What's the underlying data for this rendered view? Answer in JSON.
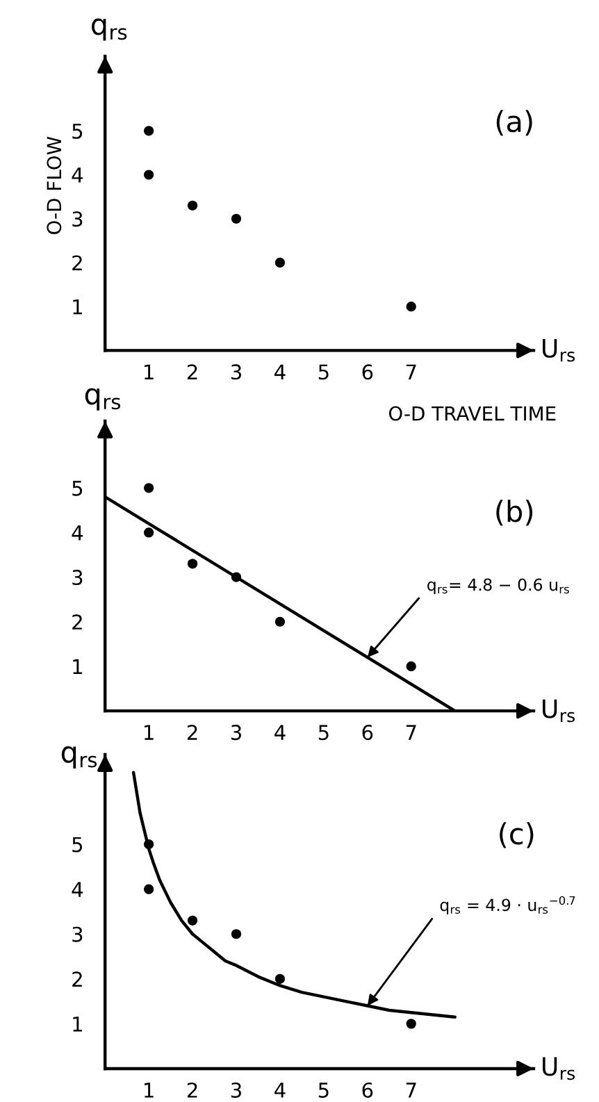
{
  "chart_data": [
    {
      "type": "scatter",
      "title": "(a)",
      "xlabel": "U$_{rs}$",
      "ylabel": "q$_{rs}$",
      "xlim": [
        0,
        9.8
      ],
      "ylim": [
        0,
        6.7
      ],
      "xticks": [
        1,
        2,
        3,
        4,
        5,
        6,
        7
      ],
      "yticks": [
        1,
        2,
        3,
        4,
        5
      ],
      "annotations": [
        "O-D FLOW",
        "O-D TRAVEL TIME"
      ],
      "series": [
        {
          "color": "#000000",
          "marker": "circle",
          "x": [
            1,
            1,
            2,
            3,
            4,
            7
          ],
          "values": [
            5,
            4,
            3.3,
            3,
            2,
            1
          ]
        }
      ]
    },
    {
      "type": "scatter",
      "title": "(b)",
      "xlabel": "U$_{rs}$",
      "ylabel": "q$_{rs}$",
      "xlim": [
        0,
        9.8
      ],
      "ylim": [
        0,
        6.5
      ],
      "xticks": [
        1,
        2,
        3,
        4,
        5,
        6,
        7
      ],
      "yticks": [
        1,
        2,
        3,
        4,
        5
      ],
      "annotations": [
        {
          "text": "q$_{rs}$= 4.8 − 0.6 u$_{rs}$",
          "x": 6,
          "y": 1.2
        }
      ],
      "series": [
        {
          "color": "#000000",
          "marker": "circle",
          "x": [
            1,
            1,
            2,
            3,
            4,
            7
          ],
          "values": [
            5,
            4,
            3.3,
            3,
            2,
            1
          ]
        },
        {
          "type": "line",
          "color": "#000000",
          "marker": "none",
          "line_style": "solid",
          "x": [
            0,
            8
          ],
          "values": [
            4.8,
            0
          ]
        }
      ]
    },
    {
      "type": "scatter",
      "title": "(c)",
      "xlabel": "U$_{rs}$",
      "ylabel": "q$_{rs}$",
      "xlim": [
        0,
        9.8
      ],
      "ylim": [
        0,
        7
      ],
      "xticks": [
        1,
        2,
        3,
        4,
        5,
        6,
        7
      ],
      "yticks": [
        1,
        2,
        3,
        4,
        5
      ],
      "annotations": [
        {
          "text": "q$_{rs}$ = 4.9 · u$_{rs}$$^{−0.7}$",
          "x": 6,
          "y": 1.4
        }
      ],
      "series": [
        {
          "color": "#000000",
          "marker": "circle",
          "x": [
            1,
            1,
            2,
            3,
            4,
            7
          ],
          "values": [
            5,
            4,
            3.3,
            3,
            2,
            1
          ]
        },
        {
          "type": "line",
          "color": "#000000",
          "marker": "none",
          "line_style": "solid",
          "x": [
            0.65,
            0.7,
            0.75,
            0.8,
            0.9,
            1,
            1.1,
            1.25,
            1.4,
            1.5,
            1.75,
            2,
            2.25,
            2.5,
            2.75,
            3,
            3.5,
            4,
            4.5,
            5,
            5.5,
            6,
            6.5,
            7,
            7.5,
            8
          ],
          "values": [
            6.6,
            6.3,
            6.0,
            5.7,
            5.3,
            4.9,
            4.6,
            4.2,
            3.9,
            3.7,
            3.3,
            3.0,
            2.8,
            2.6,
            2.4,
            2.3,
            2.05,
            1.85,
            1.7,
            1.6,
            1.5,
            1.4,
            1.3,
            1.25,
            1.2,
            1.15
          ]
        }
      ]
    }
  ]
}
